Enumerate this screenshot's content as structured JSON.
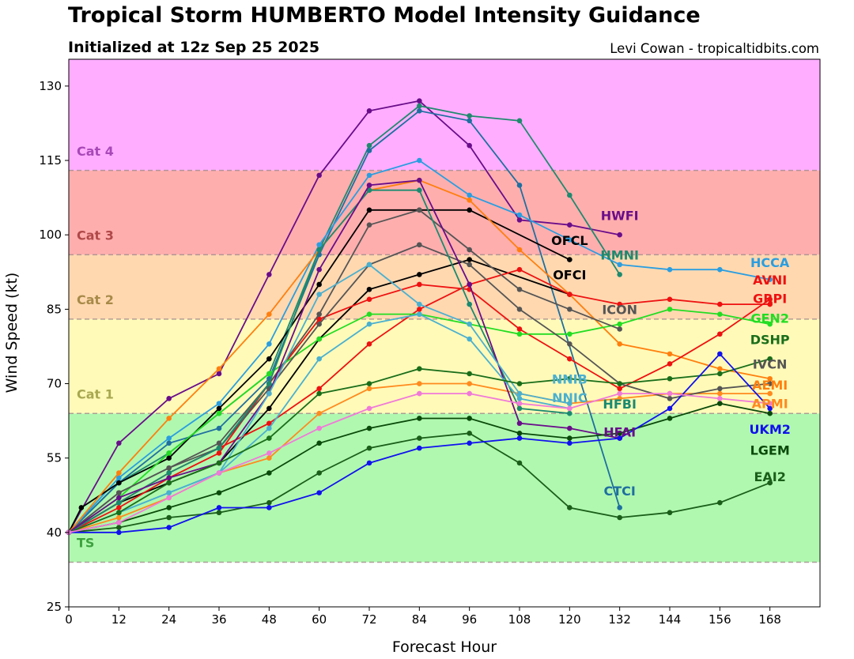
{
  "chart_data": {
    "type": "line",
    "title": "Tropical Storm HUMBERTO Model Intensity Guidance",
    "subtitle": "Initialized at 12z Sep 25 2025",
    "credit": "Levi Cowan - tropicaltidbits.com",
    "xlabel": "Forecast Hour",
    "ylabel": "Wind Speed (kt)",
    "xlim": [
      0,
      180
    ],
    "ylim": [
      25,
      135.4
    ],
    "xticks": [
      0,
      12,
      24,
      36,
      48,
      60,
      72,
      84,
      96,
      108,
      120,
      132,
      144,
      156,
      168
    ],
    "yticks": [
      25,
      40,
      55,
      70,
      85,
      100,
      115,
      130
    ],
    "bands": [
      {
        "label": "TS",
        "min": 34,
        "max": 64,
        "color": "#b0f8b0",
        "text_color": "#3ea23e",
        "label_at": 37
      },
      {
        "label": "Cat 1",
        "min": 64,
        "max": 83,
        "color": "#fffab8",
        "text_color": "#a8a850",
        "label_at": 67
      },
      {
        "label": "Cat 2",
        "min": 83,
        "max": 96,
        "color": "#ffd8b0",
        "text_color": "#a88a48",
        "label_at": 86
      },
      {
        "label": "Cat 3",
        "min": 96,
        "max": 113,
        "color": "#ffaeae",
        "text_color": "#b04848",
        "label_at": 99
      },
      {
        "label": "Cat 4",
        "min": 113,
        "max": 137,
        "color": "#ffaeff",
        "text_color": "#a848b8",
        "label_at": 116
      }
    ],
    "series": [
      {
        "name": "HWFI",
        "color": "#6a0d8a",
        "x": [
          0,
          12,
          24,
          36,
          48,
          60,
          72,
          84,
          96,
          108,
          120,
          132
        ],
        "y": [
          40,
          58,
          67,
          72,
          92,
          112,
          125,
          127,
          118,
          103,
          102,
          100
        ],
        "label_at": [
          132,
          103
        ]
      },
      {
        "name": "HMNI",
        "color": "#1f8a6e",
        "x": [
          0,
          12,
          24,
          36,
          48,
          60,
          72,
          84,
          96,
          108,
          120,
          132
        ],
        "y": [
          40,
          50,
          56,
          64,
          72,
          97,
          118,
          126,
          124,
          123,
          108,
          92
        ],
        "label_at": [
          132,
          95
        ]
      },
      {
        "name": "CTCI",
        "color": "#1f6fa0",
        "x": [
          0,
          12,
          24,
          36,
          48,
          60,
          72,
          84,
          96,
          108,
          132
        ],
        "y": [
          40,
          50,
          58,
          61,
          71,
          96,
          117,
          125,
          123,
          110,
          45
        ],
        "label_at": [
          132,
          47.5
        ]
      },
      {
        "name": "HCCA",
        "color": "#2a9ee0",
        "x": [
          0,
          12,
          24,
          36,
          48,
          60,
          72,
          84,
          96,
          108,
          120,
          132,
          144,
          156,
          168
        ],
        "y": [
          40,
          51,
          59,
          66,
          78,
          98,
          112,
          115,
          108,
          104,
          99,
          94,
          93,
          93,
          91
        ],
        "label_at": [
          168,
          93.5
        ]
      },
      {
        "name": "OFCL",
        "color": "#000000",
        "x": [
          0,
          3,
          12,
          24,
          36,
          48,
          60,
          72,
          84,
          96,
          120
        ],
        "y": [
          40,
          45,
          50,
          55,
          65,
          75,
          90,
          105,
          105,
          105,
          95
        ],
        "label_at": [
          120,
          98
        ]
      },
      {
        "name": "OFCI",
        "color": "#000000",
        "x": [
          0,
          12,
          24,
          36,
          48,
          60,
          72,
          84,
          96,
          120
        ],
        "y": [
          40,
          46,
          50,
          54,
          65,
          79,
          89,
          92,
          95,
          88
        ],
        "label_at": [
          120,
          91
        ]
      },
      {
        "name": "AEMI",
        "color": "#ff7f0e",
        "x": [
          0,
          12,
          24,
          36,
          48,
          60,
          72,
          84,
          96,
          108,
          120,
          132,
          144,
          156,
          168
        ],
        "y": [
          40,
          52,
          63,
          73,
          84,
          97,
          109,
          111,
          107,
          97,
          88,
          78,
          76,
          73,
          71
        ],
        "label_at": [
          168,
          71.5
        ]
      },
      {
        "name": "APMI",
        "color": "#ff8a1e",
        "x": [
          0,
          12,
          24,
          36,
          48,
          60,
          72,
          84,
          96,
          108,
          120,
          132,
          144,
          156,
          168
        ],
        "y": [
          40,
          43,
          47,
          52,
          55,
          64,
          69,
          70,
          70,
          68,
          66,
          67,
          68,
          68,
          68
        ],
        "label_at": [
          168,
          70.5
        ]
      },
      {
        "name": "AVNI",
        "color": "#ee1111",
        "x": [
          0,
          12,
          24,
          36,
          48,
          60,
          72,
          84,
          96,
          108,
          120,
          132,
          144,
          156,
          168
        ],
        "y": [
          40,
          46,
          52,
          57,
          62,
          69,
          78,
          85,
          90,
          93,
          88,
          86,
          87,
          86,
          86
        ],
        "label_at": [
          168,
          90
        ]
      },
      {
        "name": "GRPI",
        "color": "#ee1111",
        "x": [
          0,
          12,
          24,
          36,
          48,
          60,
          72,
          84,
          96,
          108,
          120,
          132,
          144,
          156,
          168
        ],
        "y": [
          40,
          45,
          51,
          56,
          70,
          83,
          87,
          90,
          89,
          81,
          75,
          69,
          74,
          80,
          87
        ],
        "label_at": [
          168,
          89
        ]
      },
      {
        "name": "GEN2",
        "color": "#22dd22",
        "x": [
          0,
          12,
          24,
          36,
          48,
          60,
          72,
          84,
          96,
          108,
          120,
          132,
          144,
          156,
          168
        ],
        "y": [
          40,
          47,
          56,
          64,
          72,
          79,
          84,
          84,
          82,
          80,
          80,
          82,
          85,
          84,
          82
        ],
        "label_at": [
          168,
          85
        ]
      },
      {
        "name": "ICON",
        "color": "#555555",
        "x": [
          0,
          12,
          24,
          36,
          48,
          60,
          72,
          84,
          96,
          108,
          120,
          132
        ],
        "y": [
          40,
          48,
          53,
          58,
          70,
          84,
          102,
          105,
          97,
          89,
          85,
          81
        ],
        "label_at": [
          132,
          84
        ]
      },
      {
        "name": "IVCN",
        "color": "#555555",
        "x": [
          0,
          12,
          24,
          36,
          48,
          60,
          72,
          84,
          96,
          108,
          120,
          132,
          144,
          156,
          168
        ],
        "y": [
          40,
          48,
          53,
          57,
          69,
          82,
          94,
          98,
          94,
          85,
          78,
          70,
          67,
          69,
          70
        ],
        "label_at": [
          168,
          73
        ]
      },
      {
        "name": "HFBI",
        "color": "#1a8a70",
        "x": [
          0,
          12,
          24,
          36,
          48,
          60,
          72,
          84,
          96,
          108,
          120
        ],
        "y": [
          40,
          46,
          52,
          57,
          70,
          97,
          109,
          109,
          86,
          65,
          64
        ],
        "label_at": [
          132,
          65
        ]
      },
      {
        "name": "HFAI",
        "color": "#6a0d8a",
        "x": [
          0,
          12,
          24,
          36,
          48,
          60,
          72,
          84,
          96,
          108,
          120,
          132
        ],
        "y": [
          40,
          47,
          51,
          54,
          68,
          93,
          110,
          111,
          90,
          62,
          61,
          59
        ],
        "label_at": [
          132,
          62
        ]
      },
      {
        "name": "NNIB",
        "color": "#4ab0d0",
        "x": [
          0,
          12,
          24,
          36,
          48,
          60,
          72,
          84,
          96,
          108,
          120
        ],
        "y": [
          40,
          44,
          48,
          52,
          68,
          88,
          94,
          86,
          82,
          68,
          66
        ],
        "label_at": [
          120,
          70
        ]
      },
      {
        "name": "NNIC",
        "color": "#4ab0d0",
        "x": [
          0,
          12,
          24,
          36,
          48,
          60,
          72,
          84,
          96,
          108,
          120
        ],
        "y": [
          40,
          44,
          48,
          52,
          61,
          75,
          82,
          84,
          79,
          67,
          65
        ],
        "label_at": [
          120,
          69
        ]
      },
      {
        "name": "DSHP",
        "color": "#1a6e1a",
        "x": [
          0,
          12,
          24,
          36,
          48,
          60,
          72,
          84,
          96,
          108,
          120,
          132,
          144,
          156,
          168
        ],
        "y": [
          40,
          44,
          50,
          54,
          59,
          68,
          70,
          73,
          72,
          70,
          71,
          70,
          71,
          72,
          75
        ],
        "label_at": [
          168,
          78
        ]
      },
      {
        "name": "LGEM",
        "color": "#0a4a0a",
        "x": [
          0,
          12,
          24,
          36,
          48,
          60,
          72,
          84,
          96,
          108,
          120,
          132,
          144,
          156,
          168
        ],
        "y": [
          40,
          42,
          45,
          48,
          52,
          58,
          61,
          63,
          63,
          60,
          59,
          60,
          63,
          66,
          64
        ],
        "label_at": [
          168,
          66.5
        ]
      },
      {
        "name": "EAI2",
        "color": "#1a5e1a",
        "x": [
          0,
          12,
          24,
          36,
          48,
          60,
          72,
          84,
          96,
          108,
          120,
          132,
          144,
          156,
          168
        ],
        "y": [
          40,
          41,
          43,
          44,
          46,
          52,
          57,
          59,
          60,
          54,
          45,
          43,
          44,
          46,
          50
        ],
        "label_at": [
          168,
          53
        ]
      },
      {
        "name": "UKM2",
        "color": "#1111ee",
        "x": [
          0,
          12,
          24,
          36,
          48,
          60,
          72,
          84,
          96,
          108,
          120,
          132,
          144,
          156,
          168
        ],
        "y": [
          40,
          40,
          41,
          45,
          45,
          48,
          54,
          57,
          58,
          59,
          58,
          59,
          65,
          76,
          65
        ],
        "label_at": [
          168,
          68
        ]
      },
      {
        "name": "",
        "color": "#f07ad8",
        "x": [
          0,
          12,
          24,
          36,
          48,
          60,
          72,
          84,
          96,
          108,
          120,
          132,
          144,
          156,
          168
        ],
        "y": [
          40,
          42,
          47,
          52,
          56,
          61,
          65,
          68,
          68,
          66,
          65,
          68,
          68,
          67,
          66
        ]
      }
    ]
  }
}
